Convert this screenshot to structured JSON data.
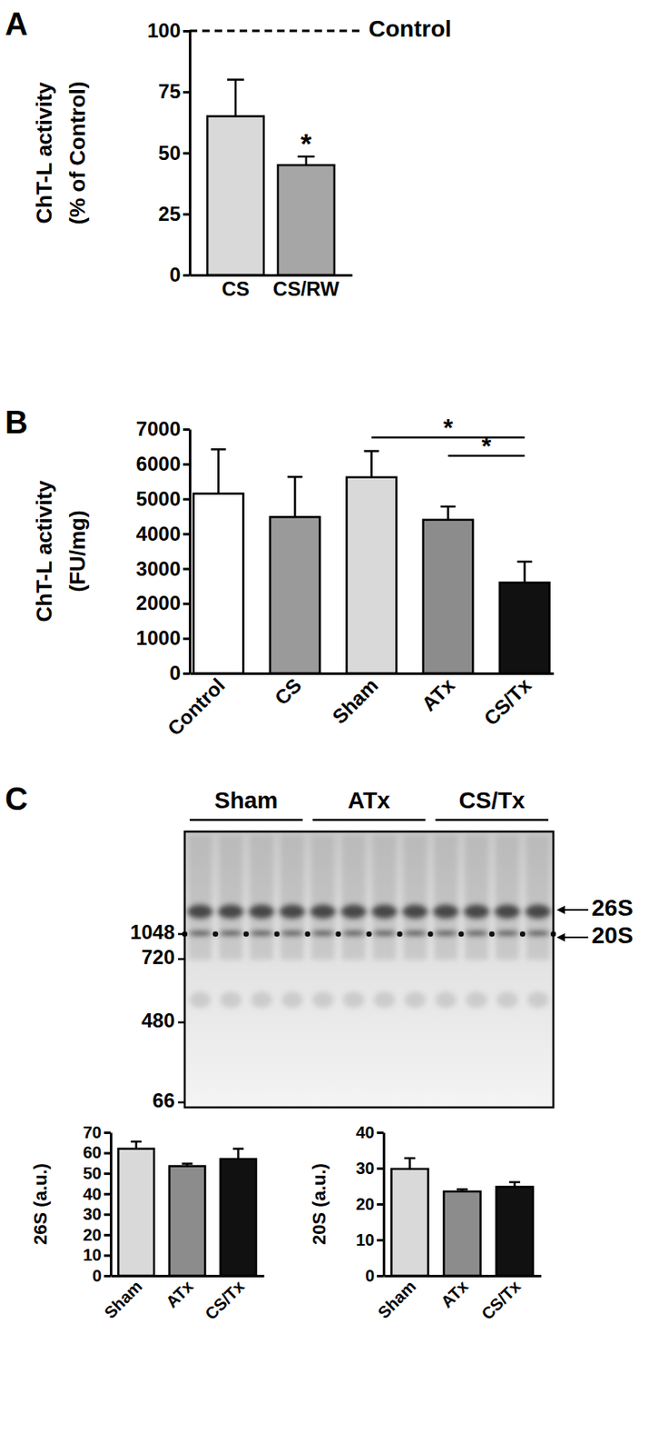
{
  "chart_data": [
    {
      "type": "bar",
      "panel": "A",
      "y_label": [
        "ChT-L activity",
        "(% of Control)"
      ],
      "categories": [
        "CS",
        "CS/RW"
      ],
      "values": [
        65,
        45
      ],
      "errors": [
        15,
        3.5
      ],
      "colors": [
        "#d9d9d9",
        "#a6a6a6"
      ],
      "ylim": [
        0,
        100
      ],
      "yticks": [
        0,
        25,
        50,
        75,
        100
      ],
      "annotations": [
        {
          "text": "Control",
          "y": 100,
          "line_style": "dashed"
        },
        {
          "text": "*",
          "category": "CS/RW"
        }
      ]
    },
    {
      "type": "bar",
      "panel": "B",
      "y_label": [
        "ChT-L activity",
        "(FU/mg)"
      ],
      "categories": [
        "Control",
        "CS",
        "Sham",
        "ATx",
        "CS/Tx"
      ],
      "values": [
        5150,
        4480,
        5620,
        4400,
        2600
      ],
      "errors": [
        1270,
        1150,
        750,
        380,
        600
      ],
      "colors": [
        "#ffffff",
        "#9a9a9a",
        "#d9d9d9",
        "#8c8c8c",
        "#111111"
      ],
      "ylim": [
        0,
        7000
      ],
      "yticks": [
        0,
        1000,
        2000,
        3000,
        4000,
        5000,
        6000,
        7000
      ],
      "annotations": [
        {
          "text": "*",
          "from": "Sham",
          "to": "CS/Tx"
        },
        {
          "text": "*",
          "from": "ATx",
          "to": "CS/Tx"
        }
      ]
    },
    {
      "type": "bar",
      "y_label": [
        "26S (a.u.)"
      ],
      "categories": [
        "Sham",
        "ATx",
        "CS/Tx"
      ],
      "values": [
        62,
        53.5,
        57
      ],
      "errors": [
        3.5,
        1.2,
        5
      ],
      "colors": [
        "#d9d9d9",
        "#8c8c8c",
        "#111111"
      ],
      "ylim": [
        0,
        70
      ],
      "yticks": [
        0,
        10,
        20,
        30,
        40,
        50,
        60,
        70
      ]
    },
    {
      "type": "bar",
      "y_label": [
        "20S (a.u.)"
      ],
      "categories": [
        "Sham",
        "ATx",
        "CS/Tx"
      ],
      "values": [
        29.8,
        23.5,
        24.8
      ],
      "errors": [
        3,
        0.6,
        1.3
      ],
      "colors": [
        "#d9d9d9",
        "#8c8c8c",
        "#111111"
      ],
      "ylim": [
        0,
        40
      ],
      "yticks": [
        0,
        10,
        20,
        30,
        40
      ]
    }
  ],
  "blot": {
    "panel": "C",
    "groups": [
      "Sham",
      "ATx",
      "CS/Tx"
    ],
    "markers": [
      1048,
      720,
      480,
      66
    ],
    "bands": [
      "26S",
      "20S"
    ]
  }
}
